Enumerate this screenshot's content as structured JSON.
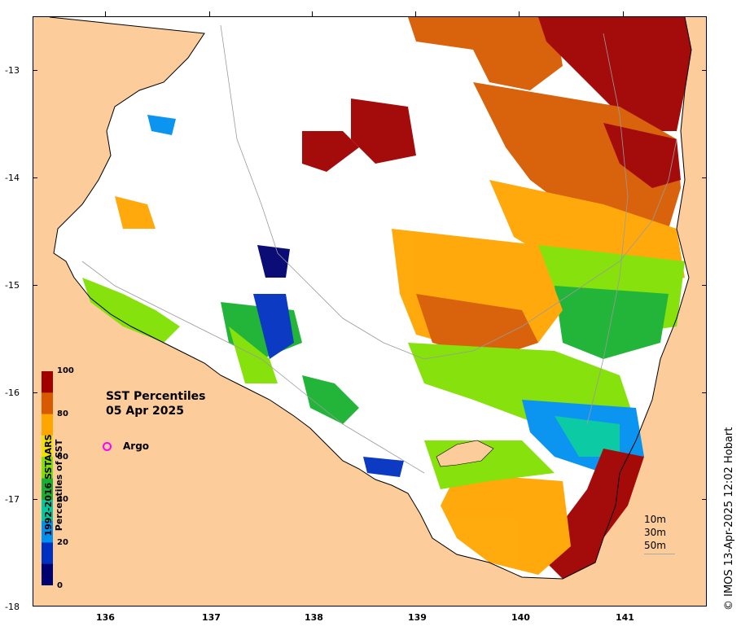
{
  "title": {
    "line1": "SST Percentiles",
    "line2": "05 Apr 2025"
  },
  "legend": {
    "argo_label": "Argo",
    "argo_color": "#ff00ff"
  },
  "colorbar": {
    "title_line1": "1992-2016 SSTAARS",
    "title_line2": "Percentiles of SST",
    "ticks": [
      "100",
      "80",
      "60",
      "40",
      "20",
      "0"
    ],
    "colors": [
      "#a00000",
      "#d85a00",
      "#ffa500",
      "#f0e000",
      "#80e000",
      "#18b030",
      "#00c8a0",
      "#0090f0",
      "#0030c0",
      "#000070"
    ]
  },
  "axes": {
    "lat_labels": [
      "-13",
      "-14",
      "-15",
      "-16",
      "-17",
      "-18"
    ],
    "lon_labels": [
      "136",
      "137",
      "138",
      "139",
      "140",
      "141"
    ]
  },
  "depth_legend": [
    "10m",
    "30m",
    "50m"
  ],
  "credit": "© IMOS 13-Apr-2025 12:02 Hobart",
  "map": {
    "land_color": "#fccc9a",
    "sea_color": "#ffffff"
  }
}
